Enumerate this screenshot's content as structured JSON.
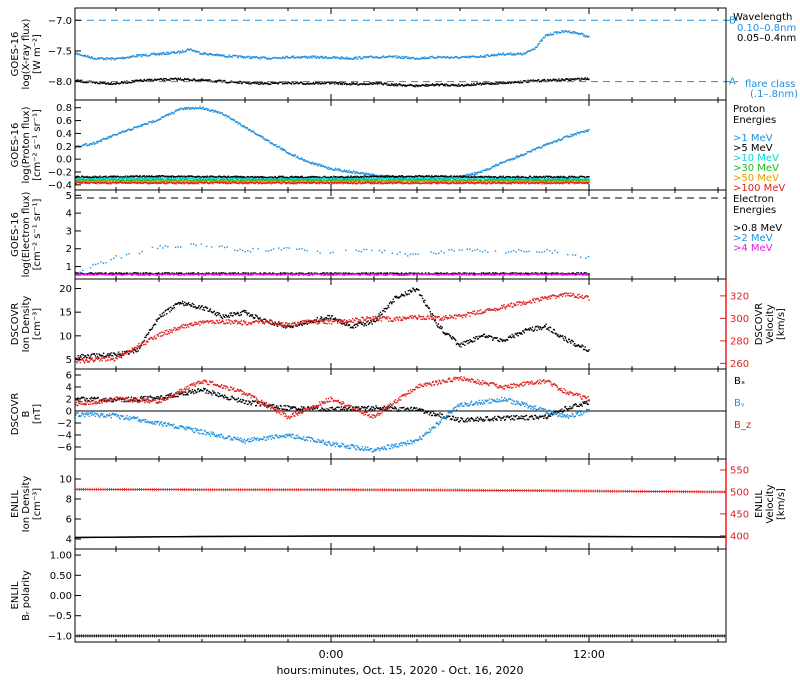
{
  "chart_data": {
    "type": "line",
    "xlabel": "hours:minutes, Oct. 15, 2020 - Oct. 16, 2020",
    "xaxis": {
      "range_hours": [
        -12,
        12
      ],
      "ticks": [
        {
          "value": 0,
          "label": "0:00"
        },
        {
          "value": 12,
          "label": "12:00"
        }
      ],
      "minor_tick_hours": 2
    },
    "panels": [
      {
        "id": "xray",
        "ylabel": [
          "GOES-16",
          "log(X-ray flux)",
          "[W m⁻²]"
        ],
        "ylim": [
          -8.3,
          -6.8
        ],
        "yticks": [
          -8.0,
          -7.5,
          -7.0
        ],
        "ytick_labels": [
          "−8.0",
          "−7.5",
          "−7.0"
        ],
        "legend_title": "Wavelength",
        "reference_lines": [
          {
            "value": -7.0,
            "label": "B",
            "color": "#1f8fdf"
          },
          {
            "value": -8.0,
            "label": "A",
            "color": "#1f8fdf"
          }
        ],
        "flare_class_label": [
          "flare class",
          "(.1–.8nm)"
        ],
        "series": [
          {
            "name": "0.10–0.8nm",
            "color": "#1f8fdf",
            "style": "points",
            "x": [
              -12,
              -11,
              -10,
              -9,
              -8,
              -7,
              -6.6,
              -6,
              -5,
              -4,
              -3,
              -2,
              -1,
              0,
              1,
              2,
              3,
              4,
              5,
              6,
              7,
              8,
              9,
              9.5,
              10,
              10.5,
              11,
              11.6,
              12
            ],
            "y": [
              -7.53,
              -7.62,
              -7.63,
              -7.58,
              -7.55,
              -7.52,
              -7.47,
              -7.54,
              -7.58,
              -7.6,
              -7.62,
              -7.6,
              -7.6,
              -7.61,
              -7.62,
              -7.6,
              -7.6,
              -7.62,
              -7.6,
              -7.61,
              -7.59,
              -7.55,
              -7.55,
              -7.45,
              -7.25,
              -7.2,
              -7.18,
              -7.22,
              -7.28
            ]
          },
          {
            "name": "0.05–0.4nm",
            "color": "#000000",
            "style": "points",
            "x": [
              -12,
              -11,
              -10,
              -9,
              -8,
              -7,
              -6,
              -5,
              -4,
              -3,
              -2,
              -1,
              0,
              1,
              2,
              3,
              4,
              5,
              6,
              7,
              8,
              9,
              10,
              11,
              12
            ],
            "y": [
              -7.98,
              -8.02,
              -8.03,
              -7.99,
              -7.97,
              -7.96,
              -7.98,
              -8.0,
              -8.02,
              -8.03,
              -8.02,
              -8.03,
              -8.02,
              -8.04,
              -8.03,
              -8.05,
              -8.07,
              -8.05,
              -8.06,
              -8.04,
              -8.02,
              -8.0,
              -7.98,
              -7.97,
              -7.95
            ]
          }
        ]
      },
      {
        "id": "proton",
        "ylabel": [
          "GOES-16",
          "log(Proton flux)",
          "[cm⁻² s⁻¹ sr⁻¹]"
        ],
        "ylim": [
          -0.48,
          0.92
        ],
        "yticks": [
          -0.4,
          -0.2,
          0.0,
          0.2,
          0.4,
          0.6,
          0.8
        ],
        "ytick_labels": [
          "−0.4",
          "−0.2",
          "0.0",
          "0.2",
          "0.4",
          "0.6",
          "0.8"
        ],
        "legend_title": [
          "Proton",
          "Energies"
        ],
        "series": [
          {
            "name": ">1 MeV",
            "color": "#1f8fdf",
            "style": "points",
            "x": [
              -12,
              -11,
              -10,
              -9,
              -8,
              -7,
              -6,
              -5,
              -4,
              -3,
              -2,
              -1,
              0,
              1,
              2,
              3,
              4,
              5,
              6,
              7,
              8,
              9,
              10,
              11,
              12
            ],
            "y": [
              0.18,
              0.25,
              0.38,
              0.5,
              0.62,
              0.78,
              0.8,
              0.7,
              0.5,
              0.3,
              0.1,
              -0.05,
              -0.15,
              -0.2,
              -0.25,
              -0.28,
              -0.3,
              -0.3,
              -0.28,
              -0.2,
              -0.05,
              0.08,
              0.22,
              0.35,
              0.45
            ]
          },
          {
            "name": ">5 MeV",
            "color": "#000000",
            "style": "points",
            "x": [
              -12,
              -8,
              -4,
              0,
              4,
              8,
              12
            ],
            "y": [
              -0.28,
              -0.27,
              -0.28,
              -0.28,
              -0.27,
              -0.28,
              -0.28
            ]
          },
          {
            "name": ">10 MeV",
            "color": "#00d8d8",
            "style": "points",
            "x": [
              -12,
              -8,
              -4,
              0,
              4,
              8,
              12
            ],
            "y": [
              -0.31,
              -0.3,
              -0.31,
              -0.31,
              -0.3,
              -0.31,
              -0.31
            ]
          },
          {
            "name": ">30 MeV",
            "color": "#22b822",
            "style": "points",
            "x": [
              -12,
              -8,
              -4,
              0,
              4,
              8,
              12
            ],
            "y": [
              -0.33,
              -0.33,
              -0.33,
              -0.33,
              -0.33,
              -0.33,
              -0.33
            ]
          },
          {
            "name": ">50 MeV",
            "color": "#e0a000",
            "style": "points",
            "x": [
              -12,
              -8,
              -4,
              0,
              4,
              8,
              12
            ],
            "y": [
              -0.35,
              -0.35,
              -0.35,
              -0.35,
              -0.35,
              -0.35,
              -0.35
            ]
          },
          {
            "name": ">100 MeV",
            "color": "#e02020",
            "style": "points",
            "x": [
              -12,
              -8,
              -4,
              0,
              4,
              8,
              12
            ],
            "y": [
              -0.37,
              -0.37,
              -0.37,
              -0.37,
              -0.37,
              -0.37,
              -0.37
            ]
          }
        ]
      },
      {
        "id": "electron",
        "ylabel": [
          "GOES-16",
          "log(Electron flux)",
          "[cm⁻² s⁻¹ sr⁻¹]"
        ],
        "ylim": [
          0.3,
          5.3
        ],
        "yticks": [
          1,
          2,
          3,
          4,
          5
        ],
        "ytick_labels": [
          "1",
          "2",
          "3",
          "4",
          "5"
        ],
        "legend_title": [
          "Electron",
          "Energies"
        ],
        "reference_lines": [
          {
            "value": 4.85,
            "color": "#000000"
          }
        ],
        "series": [
          {
            "name": ">0.8 MeV",
            "color": "#000000",
            "style": "points",
            "x": [
              -12,
              12
            ],
            "y": [
              0.6,
              0.6
            ]
          },
          {
            "name": ">2 MeV",
            "color": "#1f8fdf",
            "style": "points",
            "x": [
              -12,
              -10,
              -8,
              -6,
              -4,
              -2,
              0,
              2,
              4,
              6,
              8,
              10,
              12
            ],
            "y": [
              0.6,
              1.5,
              2.1,
              2.2,
              1.9,
              2.0,
              1.8,
              1.9,
              1.6,
              2.0,
              1.8,
              1.9,
              1.5
            ]
          },
          {
            "name": ">4 MeV",
            "color": "#e020e0",
            "style": "points",
            "x": [
              -12,
              12
            ],
            "y": [
              0.55,
              0.55
            ]
          }
        ]
      },
      {
        "id": "dscovr_density",
        "ylabel": [
          "DSCOVR",
          "Ion Density",
          "[cm⁻³]"
        ],
        "ylim": [
          3,
          22
        ],
        "yticks": [
          5,
          10,
          15,
          20
        ],
        "ytick_labels": [
          "5",
          "10",
          "15",
          "20"
        ],
        "y2label": [
          "DSCOVR",
          "Velocity",
          "[km/s]"
        ],
        "y2lim": [
          255,
          335
        ],
        "y2ticks": [
          260,
          280,
          300,
          320
        ],
        "y2tick_labels": [
          "260",
          "280",
          "300",
          "320"
        ],
        "series": [
          {
            "name": "Ion Density",
            "color": "#000000",
            "axis": "left",
            "style": "points",
            "x": [
              -12,
              -10,
              -9,
              -8,
              -7,
              -6,
              -5,
              -4,
              -3,
              -2,
              -1,
              0,
              1,
              2,
              3,
              4,
              5,
              6,
              7,
              8,
              9,
              10,
              11,
              12
            ],
            "y": [
              5.5,
              6,
              7,
              14,
              17,
              16,
              14,
              15,
              13,
              12,
              13,
              14,
              12,
              13,
              18,
              20,
              12,
              8,
              10,
              9,
              11,
              12,
              9,
              7
            ]
          },
          {
            "name": "Velocity",
            "color": "#e02020",
            "axis": "right",
            "style": "points",
            "x": [
              -12,
              -10,
              -9,
              -8,
              -7,
              -6,
              -5,
              -4,
              -3,
              -2,
              -1,
              0,
              1,
              2,
              3,
              4,
              5,
              6,
              7,
              8,
              9,
              10,
              11,
              12
            ],
            "y": [
              262,
              264,
              275,
              285,
              292,
              296,
              297,
              296,
              297,
              294,
              297,
              297,
              298,
              300,
              299,
              301,
              300,
              302,
              306,
              310,
              314,
              318,
              322,
              318
            ]
          }
        ]
      },
      {
        "id": "dscovr_b",
        "ylabel": [
          "DSCOVR",
          "B",
          "[nT]"
        ],
        "ylim": [
          -8,
          7
        ],
        "yticks": [
          -6,
          -4,
          -2,
          0,
          2,
          4,
          6
        ],
        "ytick_labels": [
          "−6",
          "−4",
          "−2",
          "0",
          "2",
          "4",
          "6"
        ],
        "zero_line": true,
        "series": [
          {
            "name": "Bₓ",
            "color": "#000000",
            "style": "points",
            "x": [
              -12,
              -10,
              -8,
              -6,
              -4,
              -2,
              0,
              2,
              4,
              6,
              8,
              10,
              11,
              12
            ],
            "y": [
              2,
              1.8,
              2.2,
              3.5,
              1.5,
              0.5,
              0.3,
              0.5,
              0.2,
              -1.5,
              -1.2,
              -1.0,
              0.5,
              1.5
            ]
          },
          {
            "name": "Bᵧ",
            "color": "#1f8fdf",
            "style": "points",
            "x": [
              -12,
              -10,
              -8,
              -6,
              -4,
              -2,
              0,
              2,
              4,
              6,
              8,
              10,
              11,
              12
            ],
            "y": [
              -0.5,
              -0.8,
              -2,
              -3.5,
              -5,
              -4,
              -5.5,
              -6.5,
              -5,
              1,
              2,
              0,
              -1,
              0
            ]
          },
          {
            "name": "B_z",
            "color": "#e02020",
            "style": "points",
            "x": [
              -12,
              -10,
              -8,
              -6,
              -4,
              -2,
              0,
              2,
              4,
              6,
              8,
              10,
              11,
              12
            ],
            "y": [
              1,
              2,
              1.5,
              5,
              3,
              -1,
              2,
              -1,
              4,
              5.5,
              4,
              5,
              3,
              2
            ]
          }
        ]
      },
      {
        "id": "enlil_density",
        "ylabel": [
          "ENLIL",
          "Ion Density",
          "[cm⁻³]"
        ],
        "ylim": [
          3,
          12
        ],
        "yticks": [
          4,
          6,
          8,
          10
        ],
        "ytick_labels": [
          "4",
          "6",
          "8",
          "10"
        ],
        "y2label": [
          "ENLIL",
          "Velocity",
          "[km/s]"
        ],
        "y2lim": [
          370,
          575
        ],
        "y2ticks": [
          400,
          450,
          500,
          550
        ],
        "y2tick_labels": [
          "400",
          "450",
          "500",
          "550"
        ],
        "series": [
          {
            "name": "Ion Density",
            "color": "#000000",
            "axis": "left",
            "style": "points",
            "x": [
              -18,
              -12,
              -6,
              0,
              6,
              12,
              18
            ],
            "y": [
              4.0,
              4.15,
              4.25,
              4.3,
              4.3,
              4.25,
              4.2
            ]
          },
          {
            "name": "Velocity",
            "color": "#e02020",
            "axis": "right",
            "style": "plus",
            "x": [
              -18,
              -12,
              -6,
              0,
              6,
              12,
              18
            ],
            "y": [
              506,
              506,
              505,
              505,
              504,
              502,
              500
            ]
          }
        ]
      },
      {
        "id": "enlil_polarity",
        "ylabel": [
          "ENLIL",
          "Bᵣ polarity"
        ],
        "ylim": [
          -1.15,
          1.15
        ],
        "yticks": [
          -1.0,
          -0.5,
          0.0,
          0.5,
          1.0
        ],
        "ytick_labels": [
          "−1.0",
          "−0.5",
          "0.00",
          "0.50",
          "1.00"
        ],
        "series": [
          {
            "name": "Bᵣ polarity",
            "color": "#000000",
            "style": "plus",
            "x": [
              -18,
              18
            ],
            "y": [
              -1.0,
              -1.0
            ]
          }
        ]
      }
    ]
  }
}
